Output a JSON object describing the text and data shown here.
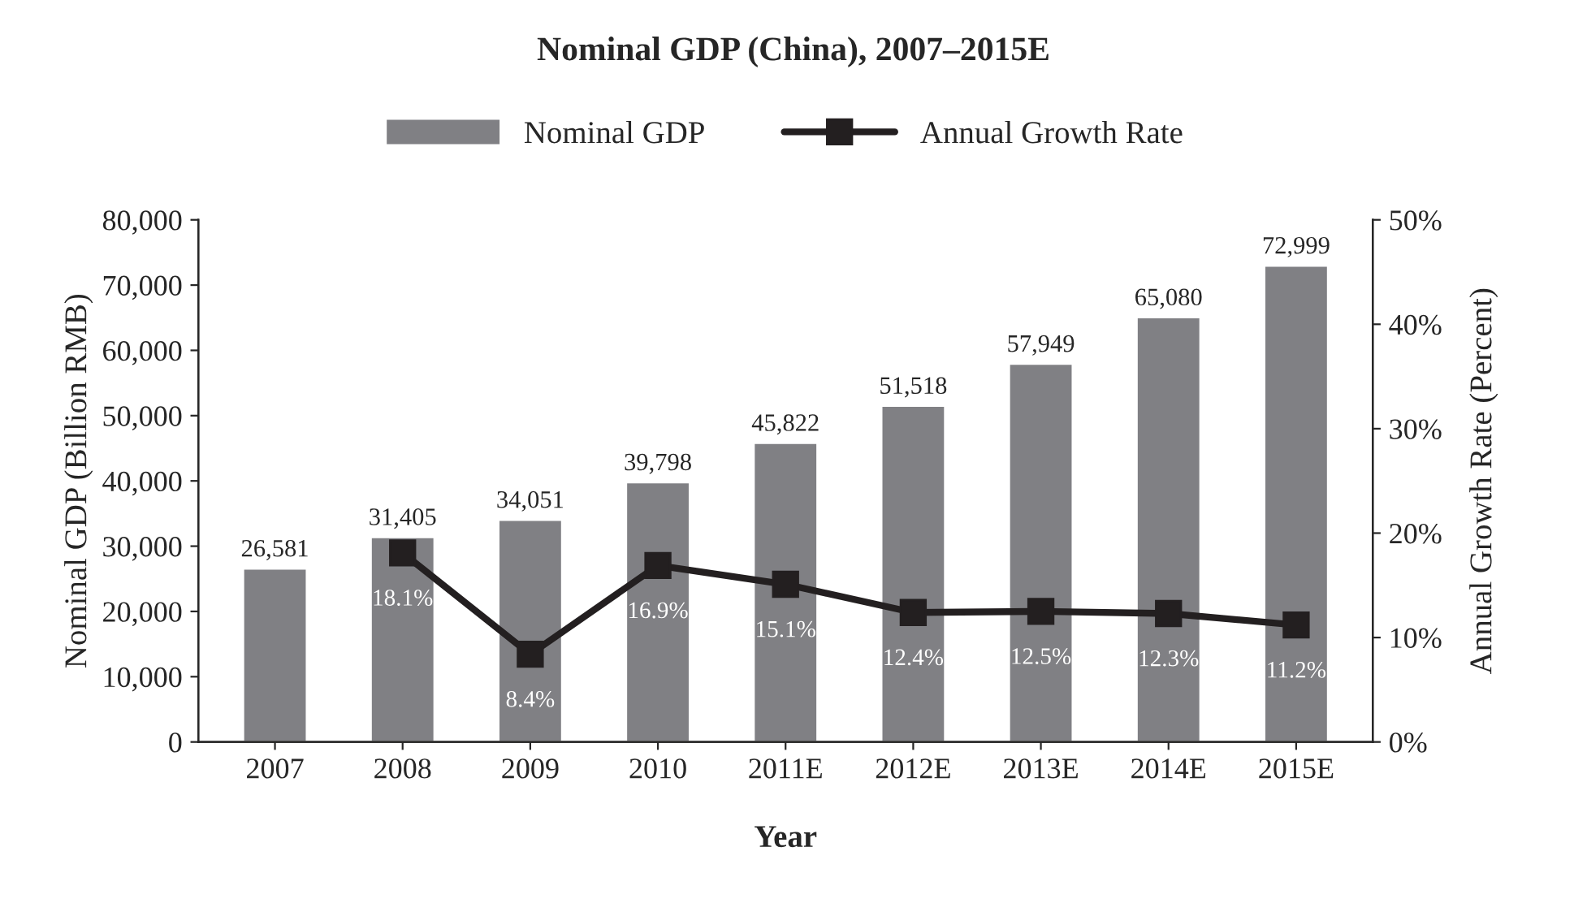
{
  "chart_data": {
    "type": "bar",
    "title": "Nominal GDP (China), 2007–2015E",
    "xlabel": "Year",
    "ylabel": "Nominal GDP (Billion RMB)",
    "y2label": "Annual Growth Rate (Percent)",
    "categories": [
      "2007",
      "2008",
      "2009",
      "2010",
      "2011E",
      "2012E",
      "2013E",
      "2014E",
      "2015E"
    ],
    "series": [
      {
        "name": "Nominal GDP",
        "color": "#808084",
        "values": [
          26581,
          31405,
          34051,
          39798,
          45822,
          51518,
          57949,
          65080,
          72999
        ],
        "value_labels": [
          "26,581",
          "31,405",
          "34,051",
          "39,798",
          "45,822",
          "51,518",
          "57,949",
          "65,080",
          "72,999"
        ]
      },
      {
        "name": "Annual Growth Rate",
        "type": "line",
        "axis": "y2",
        "color": "#231f20",
        "marker": "square",
        "line_style": "solid",
        "values": [
          null,
          18.1,
          8.4,
          16.9,
          15.1,
          12.4,
          12.5,
          12.3,
          11.2
        ],
        "value_labels": [
          null,
          "18.1%",
          "8.4%",
          "16.9%",
          "15.1%",
          "12.4%",
          "12.5%",
          "12.3%",
          "11.2%"
        ]
      }
    ],
    "ylim": [
      0,
      80000
    ],
    "yticks": [
      {
        "value": 0,
        "label": "0"
      },
      {
        "value": 10000,
        "label": "10,000"
      },
      {
        "value": 20000,
        "label": "20,000"
      },
      {
        "value": 30000,
        "label": "30,000"
      },
      {
        "value": 40000,
        "label": "40,000"
      },
      {
        "value": 50000,
        "label": "50,000"
      },
      {
        "value": 60000,
        "label": "60,000"
      },
      {
        "value": 70000,
        "label": "70,000"
      },
      {
        "value": 80000,
        "label": "80,000"
      }
    ],
    "y2lim": [
      0,
      50
    ],
    "y2ticks": [
      {
        "value": 0,
        "label": "0%"
      },
      {
        "value": 10,
        "label": "10%"
      },
      {
        "value": 20,
        "label": "20%"
      },
      {
        "value": 30,
        "label": "30%"
      },
      {
        "value": 40,
        "label": "40%"
      },
      {
        "value": 50,
        "label": "50%"
      }
    ],
    "legend": "top",
    "grid": false
  }
}
